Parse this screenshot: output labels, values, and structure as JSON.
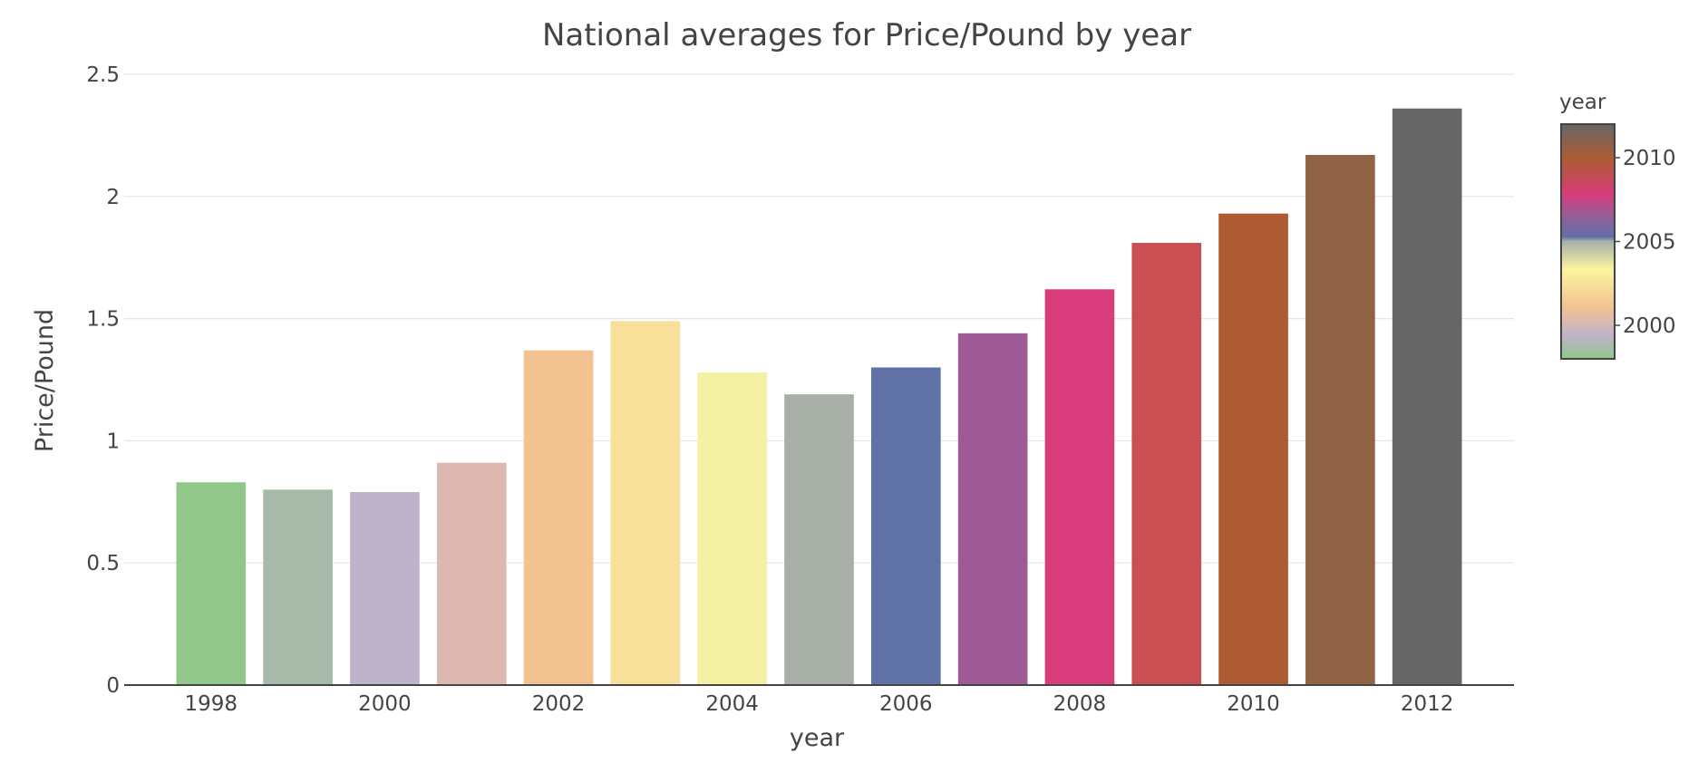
{
  "chart_data": {
    "type": "bar",
    "title": "National averages for Price/Pound by year",
    "xlabel": "year",
    "ylabel": "Price/Pound",
    "categories": [
      1998,
      1999,
      2000,
      2001,
      2002,
      2003,
      2004,
      2005,
      2006,
      2007,
      2008,
      2009,
      2010,
      2011,
      2012
    ],
    "values": [
      0.83,
      0.8,
      0.79,
      0.91,
      1.37,
      1.49,
      1.28,
      1.19,
      1.3,
      1.44,
      1.62,
      1.81,
      1.93,
      2.17,
      2.36
    ],
    "colors": [
      "#91c78a",
      "#a7b9a9",
      "#bfb3cb",
      "#dcb8b0",
      "#f2c391",
      "#f9e09a",
      "#f4f1a4",
      "#a9b0a7",
      "#6071a6",
      "#9d5a95",
      "#d83c7a",
      "#c94f53",
      "#ae5b33",
      "#906246",
      "#666666"
    ],
    "xlim": [
      1997,
      2013
    ],
    "ylim": [
      0,
      2.5
    ],
    "x_ticks": [
      1998,
      2000,
      2002,
      2004,
      2006,
      2008,
      2010,
      2012
    ],
    "y_ticks": [
      0,
      0.5,
      1,
      1.5,
      2,
      2.5
    ],
    "y_tick_labels": [
      "0",
      "0.5",
      "1",
      "1.5",
      "2",
      "2.5"
    ],
    "grid": true,
    "colorbar": {
      "title": "year",
      "range": [
        1998,
        2012
      ],
      "ticks": [
        2000,
        2005,
        2010
      ],
      "stops": [
        [
          0.0,
          "#91c78a"
        ],
        [
          0.1,
          "#bfb3cb"
        ],
        [
          0.22,
          "#f2c391"
        ],
        [
          0.38,
          "#fbf49f"
        ],
        [
          0.5,
          "#a9b0a7"
        ],
        [
          0.52,
          "#6071a6"
        ],
        [
          0.62,
          "#9d5a95"
        ],
        [
          0.7,
          "#d83c7a"
        ],
        [
          0.85,
          "#ae5b33"
        ],
        [
          1.0,
          "#666666"
        ]
      ]
    }
  }
}
